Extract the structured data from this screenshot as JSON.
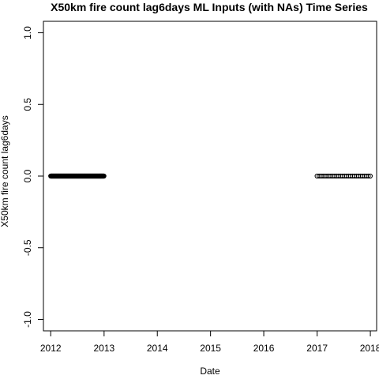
{
  "chart_data": {
    "type": "scatter",
    "title": "X50km fire count lag6days ML Inputs (with NAs) Time Series",
    "xlabel": "Date",
    "ylabel": "X50km fire count lag6days",
    "xlim": [
      "2011-11-12",
      "2018-02-13"
    ],
    "ylim": [
      -1.08,
      1.08
    ],
    "x_ticks": [
      "2012",
      "2013",
      "2014",
      "2015",
      "2016",
      "2017",
      "2018"
    ],
    "y_ticks": [
      "-1.0",
      "-0.5",
      "0.0",
      "0.5",
      "1.0"
    ],
    "grid": false,
    "legend": "none",
    "marker": "open-circle",
    "point_color": "#000000",
    "series": [
      {
        "segments": [
          {
            "start": "2012-01-01",
            "end": "2012-12-31",
            "y": 0.0,
            "approx_points": 250
          },
          {
            "start": "2017-01-01",
            "end": "2017-12-31",
            "y": 0.0,
            "approx_points": 28
          }
        ]
      }
    ]
  }
}
